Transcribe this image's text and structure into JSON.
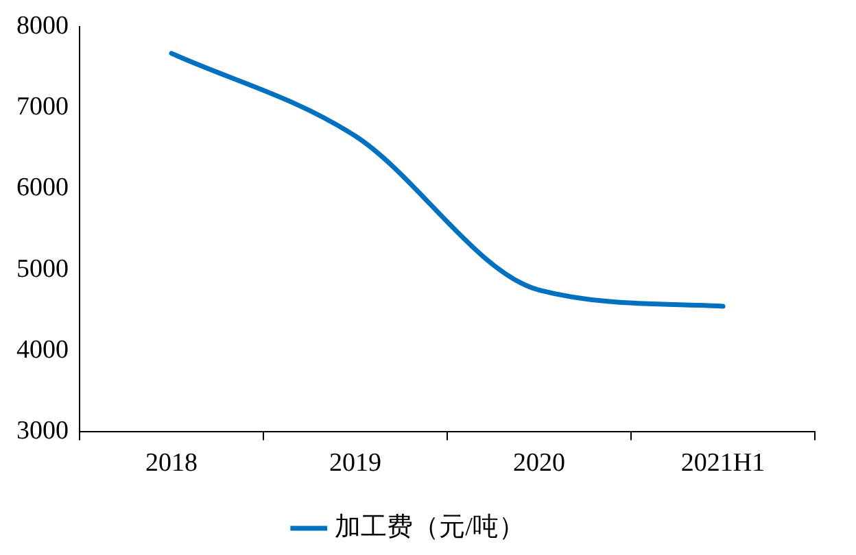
{
  "chart_data": {
    "type": "line",
    "categories": [
      "2018",
      "2019",
      "2020",
      "2021H1"
    ],
    "series": [
      {
        "name": "加工费（元/吨）",
        "color": "#0070c0",
        "values": [
          7670,
          6650,
          4750,
          4550
        ]
      }
    ],
    "ylim": [
      3000,
      8000
    ],
    "yticks": [
      3000,
      4000,
      5000,
      6000,
      7000,
      8000
    ],
    "grid": false,
    "legend": "bottom",
    "marker": "none",
    "line_style": "solid"
  }
}
